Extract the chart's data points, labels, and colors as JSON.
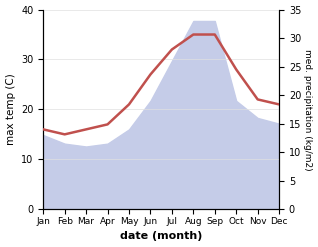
{
  "months": [
    "Jan",
    "Feb",
    "Mar",
    "Apr",
    "May",
    "Jun",
    "Jul",
    "Aug",
    "Sep",
    "Oct",
    "Nov",
    "Dec"
  ],
  "temperature": [
    16,
    15,
    16,
    17,
    21,
    27,
    32,
    35,
    35,
    28,
    22,
    21
  ],
  "precipitation_right": [
    13,
    11.5,
    11,
    11.5,
    14,
    19,
    26,
    33,
    33,
    19,
    16,
    15
  ],
  "temp_color": "#c0504d",
  "precip_color": "#c5cce8",
  "left_ylabel": "max temp (C)",
  "right_ylabel": "med. precipitation (kg/m2)",
  "xlabel": "date (month)",
  "ylim_left": [
    0,
    40
  ],
  "ylim_right": [
    0,
    35
  ],
  "left_yticks": [
    0,
    10,
    20,
    30,
    40
  ],
  "right_yticks": [
    0,
    5,
    10,
    15,
    20,
    25,
    30,
    35
  ],
  "bg_color": "#ffffff",
  "fig_bg": "#ffffff",
  "line_width": 1.8
}
